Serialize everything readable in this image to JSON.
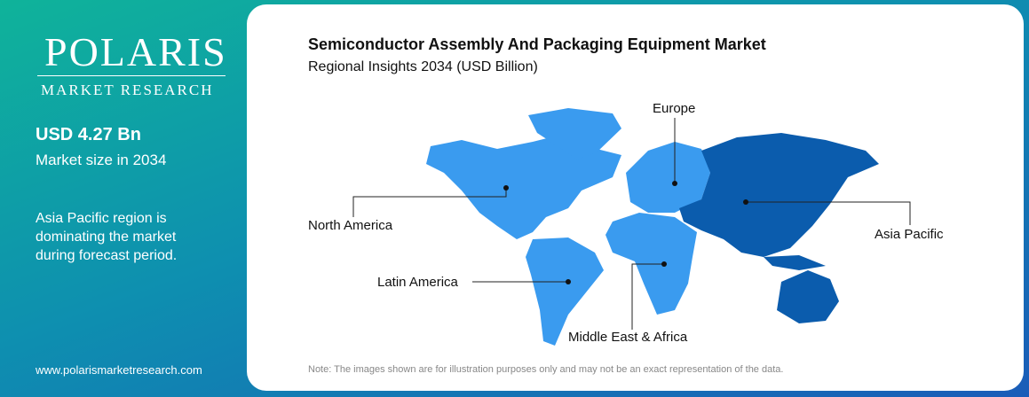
{
  "sidebar": {
    "logo": "POLARIS",
    "logo_sub": "MARKET RESEARCH",
    "market_size": "USD 4.27 Bn",
    "market_size_label": "Market size in 2034",
    "insight": "Asia Pacific region is dominating the market during forecast period.",
    "website": "www.polarismarketresearch.com"
  },
  "header": {
    "title": "Semiconductor Assembly And Packaging Equipment Market",
    "subtitle": "Regional Insights 2034 (USD Billion)"
  },
  "map": {
    "regions": [
      {
        "label": "North America"
      },
      {
        "label": "Europe"
      },
      {
        "label": "Asia Pacific"
      },
      {
        "label": "Latin America"
      },
      {
        "label": "Middle East & Africa"
      }
    ]
  },
  "note": "Note: The images shown are for illustration purposes only and may not be an exact representation of the data."
}
